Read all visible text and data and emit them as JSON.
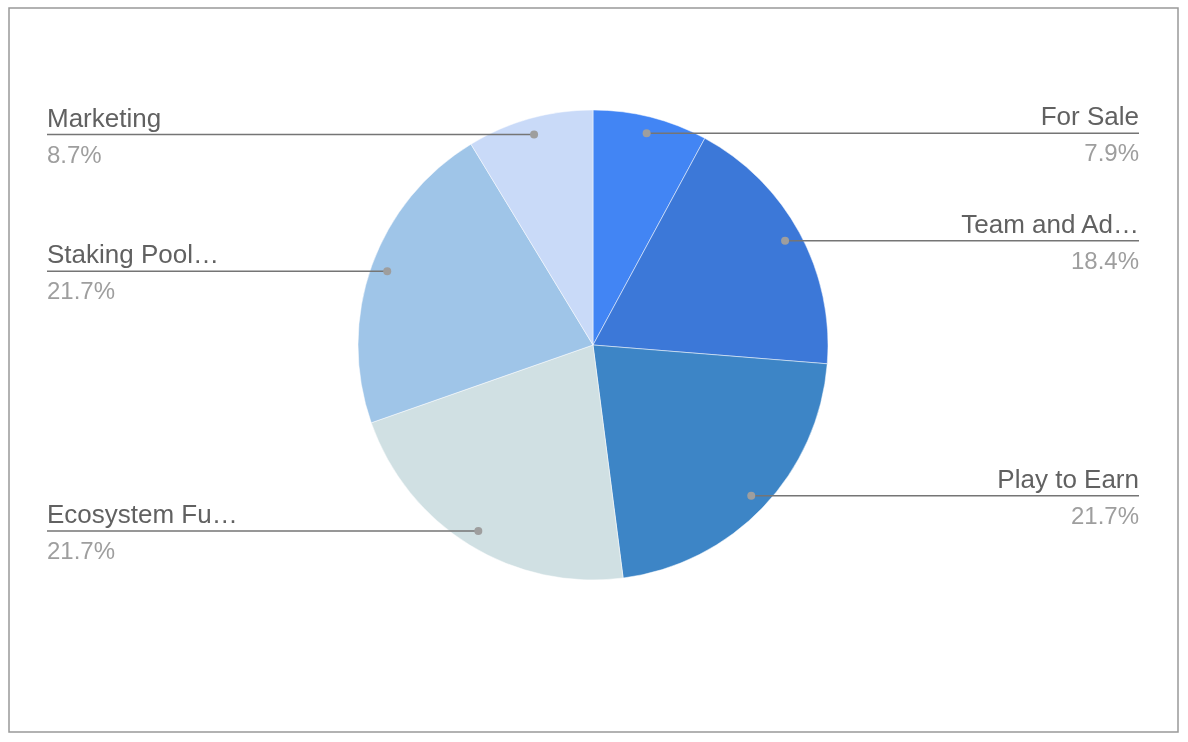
{
  "chart_data": {
    "type": "pie",
    "categories": [
      "For Sale",
      "Team and Ad…",
      "Play to Earn",
      "Ecosystem Fu…",
      "Staking Pool…",
      "Marketing"
    ],
    "values": [
      7.9,
      18.4,
      21.7,
      21.7,
      21.7,
      8.7
    ],
    "colors": [
      "#4285f4",
      "#3c78d8",
      "#3d85c6",
      "#d0e0e3",
      "#9fc5e8",
      "#c9daf8"
    ],
    "value_labels": [
      "7.9%",
      "18.4%",
      "21.7%",
      "21.7%",
      "21.7%",
      "8.7%"
    ],
    "legend": false
  }
}
